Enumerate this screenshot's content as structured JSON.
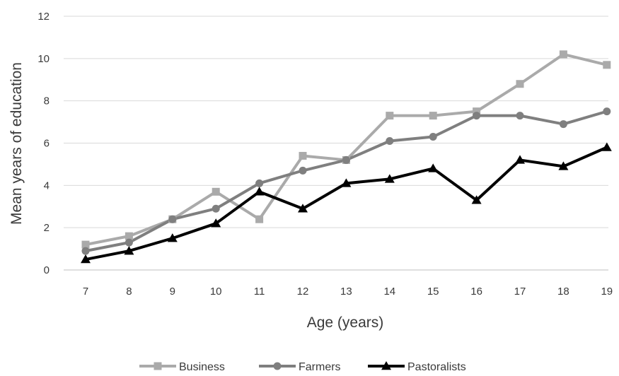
{
  "chart_data": {
    "type": "line",
    "title": "",
    "xlabel": "Age (years)",
    "ylabel": "Mean years of education",
    "x": [
      7,
      8,
      9,
      10,
      11,
      12,
      13,
      14,
      15,
      16,
      17,
      18,
      19
    ],
    "ylim": [
      0,
      12
    ],
    "yticks": [
      0,
      2,
      4,
      6,
      8,
      10,
      12
    ],
    "grid": true,
    "legend_position": "bottom",
    "series": [
      {
        "name": "Business",
        "marker": "square",
        "color": "#aaaaaa",
        "values": [
          1.2,
          1.6,
          2.4,
          3.7,
          2.4,
          5.4,
          5.2,
          7.3,
          7.3,
          7.5,
          8.8,
          10.2,
          9.7
        ]
      },
      {
        "name": "Farmers",
        "marker": "circle",
        "color": "#7f7f7f",
        "values": [
          0.9,
          1.3,
          2.4,
          2.9,
          4.1,
          4.7,
          5.2,
          6.1,
          6.3,
          7.3,
          7.3,
          6.9,
          7.5
        ]
      },
      {
        "name": "Pastoralists",
        "marker": "triangle",
        "color": "#000000",
        "values": [
          0.5,
          0.9,
          1.5,
          2.2,
          3.7,
          2.9,
          4.1,
          4.3,
          4.8,
          3.3,
          5.2,
          4.9,
          5.8
        ]
      }
    ]
  }
}
